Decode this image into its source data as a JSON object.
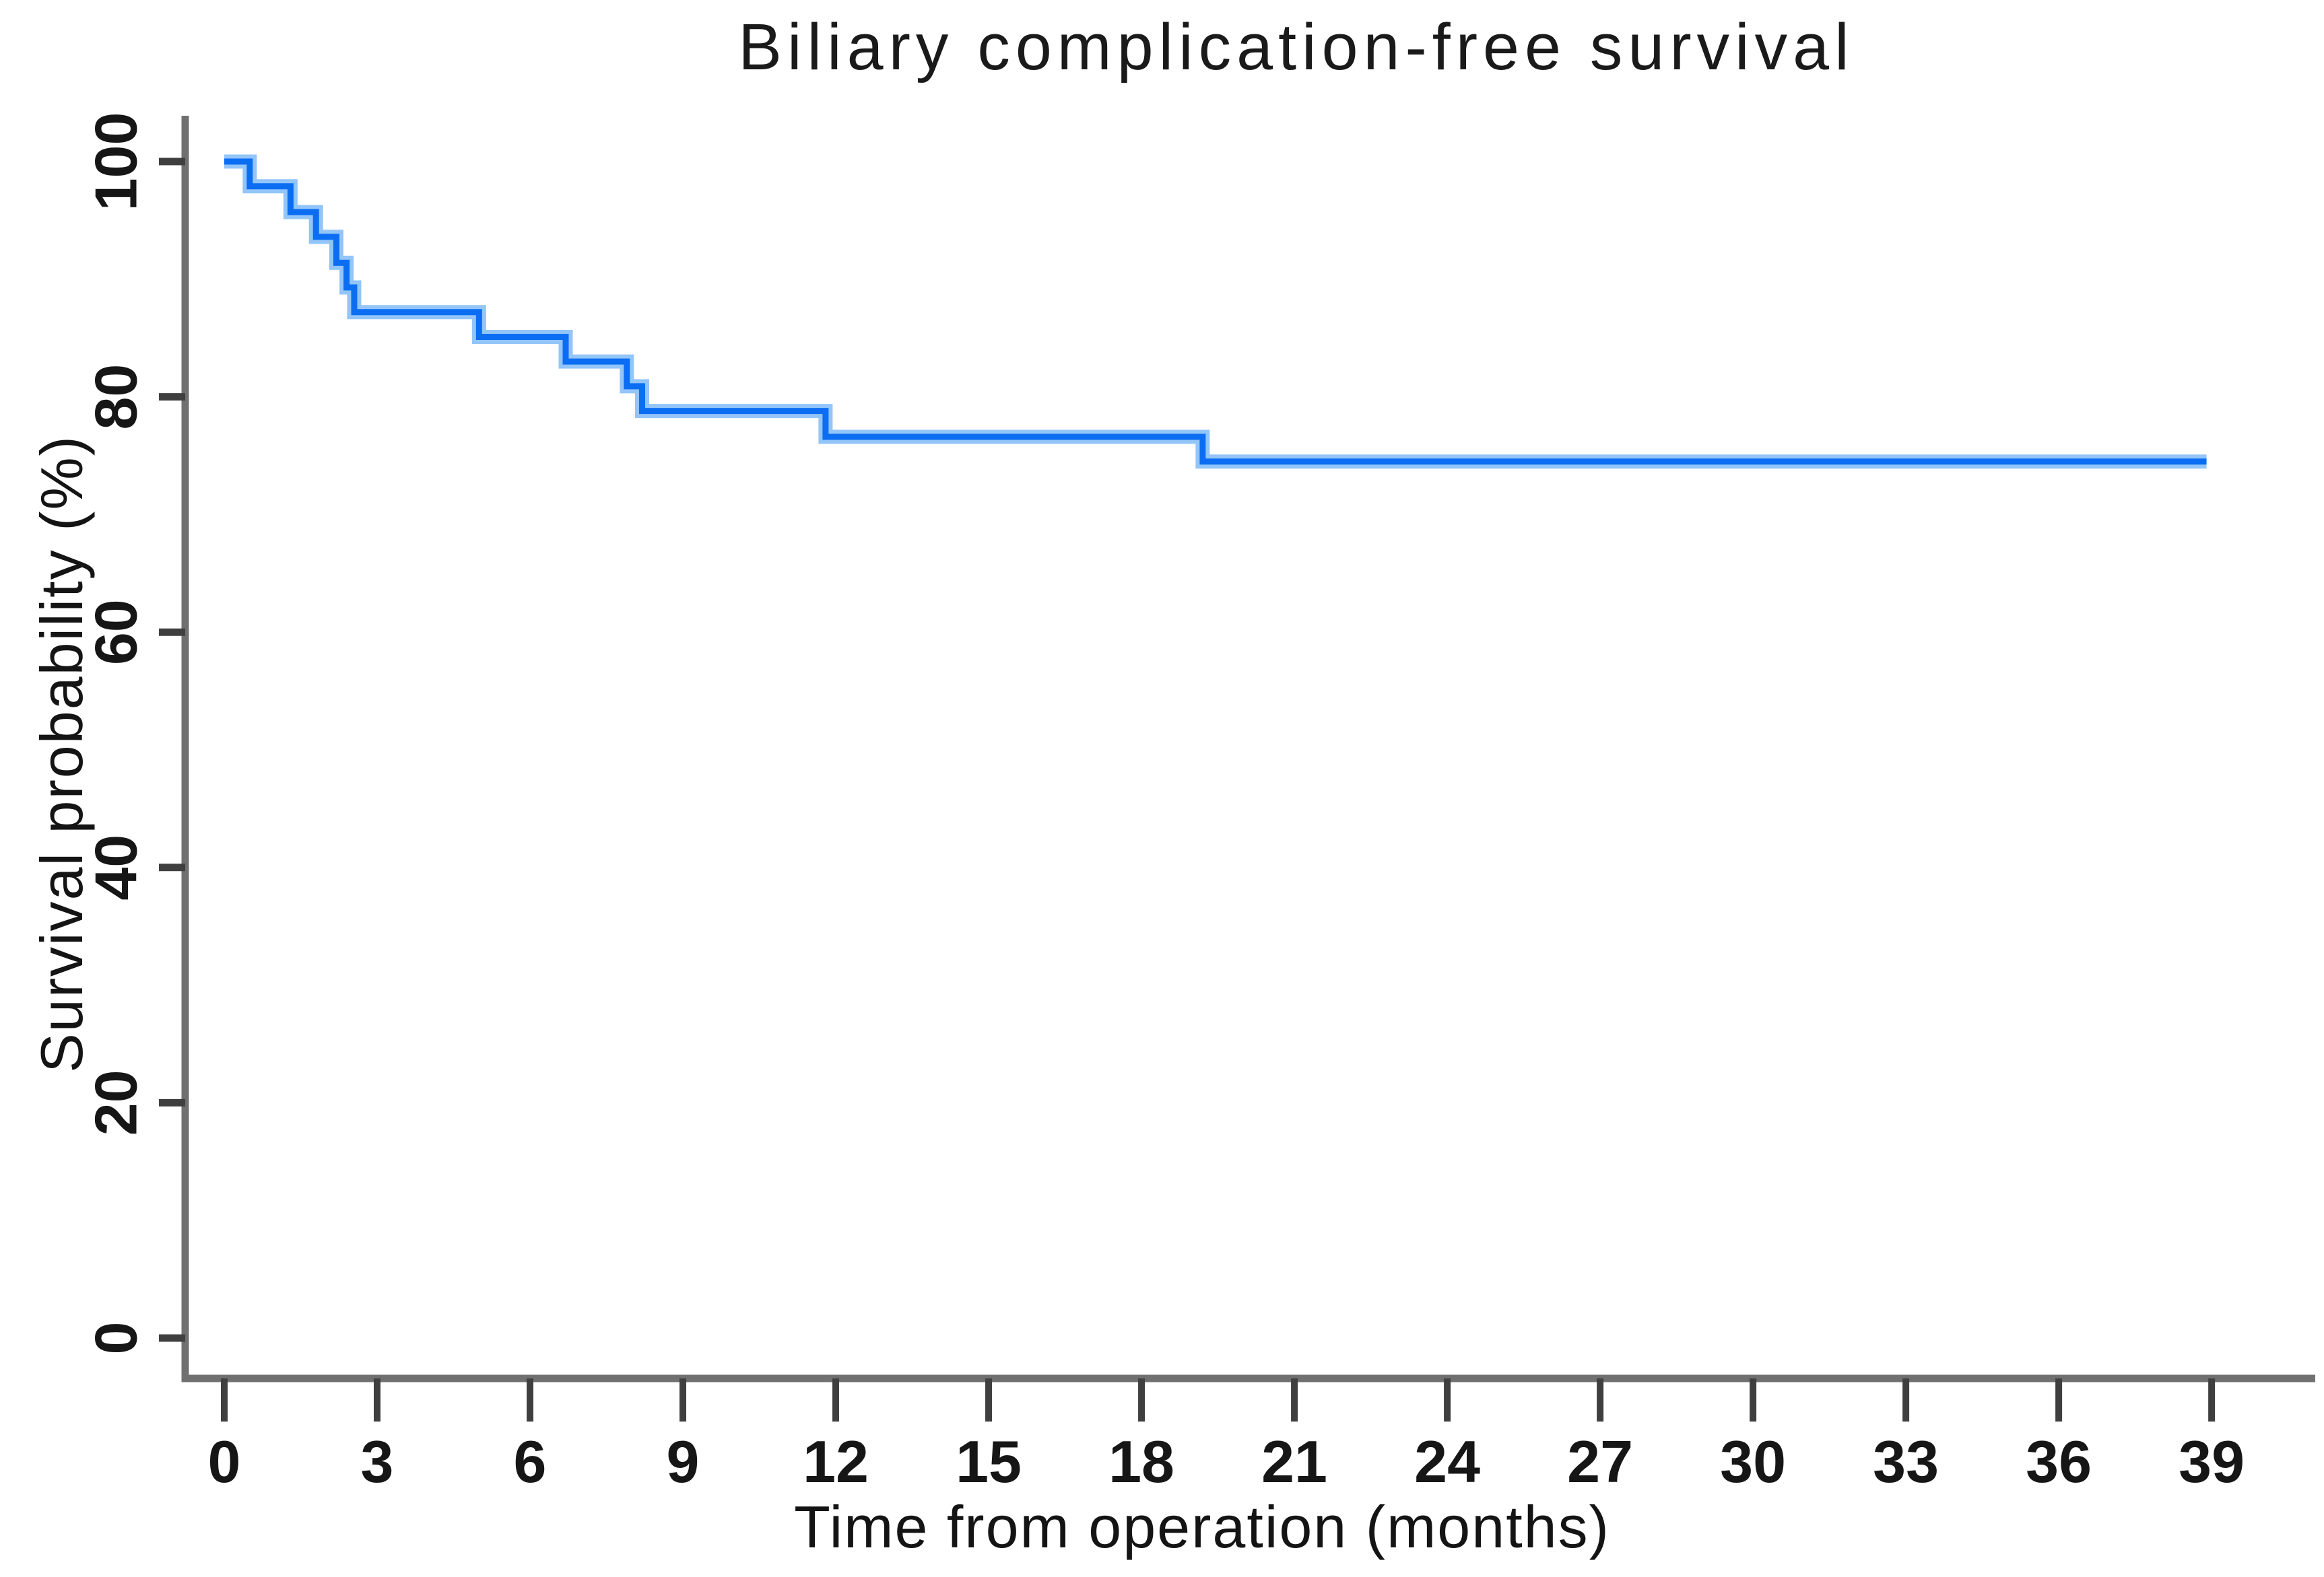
{
  "chart_data": {
    "type": "line",
    "subtype": "kaplan-meier-step",
    "title": "Biliary complication-free survival",
    "xlabel": "Time from operation (months)",
    "ylabel": "Survival probability (%)",
    "x_ticks": [
      0,
      3,
      6,
      9,
      12,
      15,
      18,
      21,
      24,
      27,
      30,
      33,
      36,
      39
    ],
    "y_ticks": [
      0,
      20,
      40,
      60,
      80,
      100
    ],
    "xlim": [
      0,
      41
    ],
    "ylim": [
      0,
      105
    ],
    "grid": false,
    "legend": "none",
    "line_color": "#0b6df2",
    "line_glow_color": "#93c5f9",
    "axis_color": "#707070",
    "tick_color": "#3f3f3f",
    "text_color": "#161616",
    "series": [
      {
        "name": "Biliary complication-free survival",
        "steps": [
          [
            0,
            100
          ],
          [
            0.5,
            97.9
          ],
          [
            1.3,
            95.7
          ],
          [
            1.8,
            93.6
          ],
          [
            2.2,
            91.4
          ],
          [
            2.4,
            89.3
          ],
          [
            2.55,
            87.2
          ],
          [
            5.0,
            85.1
          ],
          [
            6.7,
            83.0
          ],
          [
            7.9,
            80.9
          ],
          [
            8.2,
            78.8
          ],
          [
            11.8,
            76.6
          ],
          [
            19.2,
            74.5
          ]
        ],
        "end_time": 38.9
      }
    ]
  }
}
